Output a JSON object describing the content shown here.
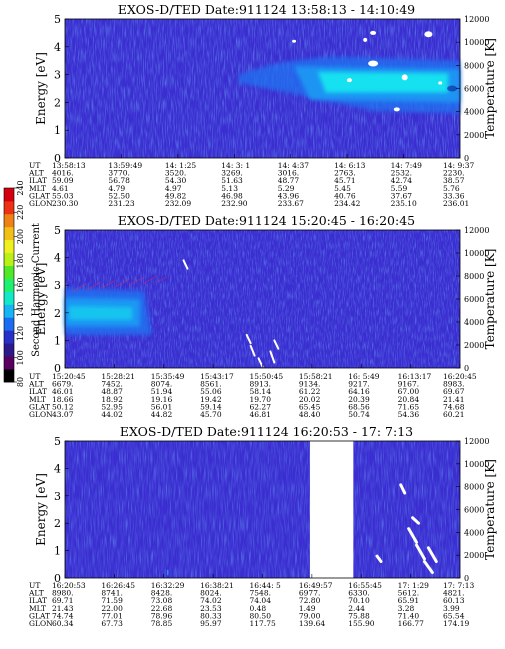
{
  "chart_data": [
    {
      "type": "heatmap",
      "title": "EXOS-D/TED   Date:911124   13:58:13 - 14:10:49",
      "ylabel": "Energy [eV]",
      "y2label": "Temperature [K]",
      "ylim": [
        0,
        5
      ],
      "y2lim": [
        0,
        12000
      ],
      "yticks": [
        "0",
        "1",
        "2",
        "3",
        "4",
        "5"
      ],
      "y2ticks": [
        "0",
        "2000",
        "4000",
        "6000",
        "8000",
        "10000",
        "12000"
      ],
      "row_labels": [
        "UT",
        "ALT",
        "ILAT",
        "MLT",
        "GLAT",
        "GLON"
      ],
      "columns": [
        [
          "13:58:13",
          "4016.",
          "59.09",
          "4.61",
          "55.03",
          "230.30"
        ],
        [
          "13:59:49",
          "3770.",
          "56.78",
          "4.79",
          "52.50",
          "231.23"
        ],
        [
          "14: 1:25",
          "3520.",
          "54.30",
          "4.97",
          "49.82",
          "232.09"
        ],
        [
          "14: 3: 1",
          "3269.",
          "51.63",
          "5.13",
          "46.98",
          "232.90"
        ],
        [
          "14: 4:37",
          "3016.",
          "48.77",
          "5.29",
          "43.96",
          "233.67"
        ],
        [
          "14: 6:13",
          "2763.",
          "45.71",
          "5.45",
          "40.76",
          "234.42"
        ],
        [
          "14: 7:49",
          "2532.",
          "42.74",
          "5.59",
          "37.67",
          "235.10"
        ],
        [
          "14: 9:37",
          "2230.",
          "38.57",
          "5.76",
          "33.36",
          "236.01"
        ]
      ]
    },
    {
      "type": "heatmap",
      "title": "EXOS-D/TED   Date:911124   15:20:45 - 16:20:45",
      "ylabel": "Energy [eV]",
      "y2label": "Temperature [K]",
      "ylim": [
        0,
        5
      ],
      "y2lim": [
        0,
        12000
      ],
      "yticks": [
        "0",
        "1",
        "2",
        "3",
        "4",
        "5"
      ],
      "y2ticks": [
        "0",
        "2000",
        "4000",
        "6000",
        "8000",
        "10000",
        "12000"
      ],
      "row_labels": [
        "UT",
        "ALT",
        "ILAT",
        "MLT",
        "GLAT",
        "GLON"
      ],
      "columns": [
        [
          "15:20:45",
          "6679.",
          "46.01",
          "18.66",
          "50.12",
          "43.07"
        ],
        [
          "15:28:21",
          "7452.",
          "48.87",
          "18.92",
          "52.95",
          "44.02"
        ],
        [
          "15:35:49",
          "8074.",
          "51.94",
          "19.16",
          "56.01",
          "44.82"
        ],
        [
          "15:43:17",
          "8561.",
          "55.06",
          "19.42",
          "59.14",
          "45.70"
        ],
        [
          "15:50:45",
          "8913.",
          "58.14",
          "19.70",
          "62.27",
          "46.81"
        ],
        [
          "15:58:21",
          "9134.",
          "61.22",
          "20.02",
          "65.45",
          "48.40"
        ],
        [
          "16: 5:49",
          "9217.",
          "64.16",
          "20.39",
          "68.56",
          "50.74"
        ],
        [
          "16:13:17",
          "9167.",
          "67.00",
          "20.84",
          "71.65",
          "54.36"
        ],
        [
          "16:20:45",
          "8983.",
          "69.67",
          "21.41",
          "74.68",
          "60.21"
        ]
      ]
    },
    {
      "type": "heatmap",
      "title": "EXOS-D/TED   Date:911124   16:20:53 - 17: 7:13",
      "ylabel": "Energy [eV]",
      "y2label": "Temperature [K]",
      "ylim": [
        0,
        5
      ],
      "y2lim": [
        0,
        12000
      ],
      "yticks": [
        "0",
        "1",
        "2",
        "3",
        "4",
        "5"
      ],
      "y2ticks": [
        "0",
        "2000",
        "4000",
        "6000",
        "8000",
        "10000",
        "12000"
      ],
      "row_labels": [
        "UT",
        "ALT",
        "ILAT",
        "MLT",
        "GLAT",
        "GLON"
      ],
      "columns": [
        [
          "16:20:53",
          "8980.",
          "69.71",
          "21.43",
          "74.74",
          "60.34"
        ],
        [
          "16:26:45",
          "8741.",
          "71.59",
          "22.00",
          "77.01",
          "67.73"
        ],
        [
          "16:32:29",
          "8428.",
          "73.08",
          "22.68",
          "78.96",
          "78.85"
        ],
        [
          "16:38:21",
          "8024.",
          "74.02",
          "23.53",
          "80.33",
          "95.97"
        ],
        [
          "16:44: 5",
          "7548.",
          "74.04",
          "0.48",
          "80.50",
          "117.75"
        ],
        [
          "16:49:57",
          "6977.",
          "72.80",
          "1.49",
          "79.00",
          "139.64"
        ],
        [
          "16:55:45",
          "6330.",
          "70.10",
          "2.44",
          "75.88",
          "155.90"
        ],
        [
          "17: 1:29",
          "5612.",
          "65.91",
          "3.28",
          "71.40",
          "166.77"
        ],
        [
          "17: 7:13",
          "4821.",
          "60.13",
          "3.99",
          "65.54",
          "174.19"
        ]
      ]
    }
  ],
  "colorbar": {
    "label": "Second Harmonic Current",
    "ticks": [
      "80",
      "100",
      "120",
      "140",
      "160",
      "180",
      "200",
      "220",
      "240"
    ],
    "colors": [
      "#000000",
      "#5a0060",
      "#2c1a8a",
      "#2830c8",
      "#1c6cf2",
      "#18b4f4",
      "#14e8c8",
      "#20f070",
      "#50e828",
      "#b8f018",
      "#f0f020",
      "#f0c018",
      "#f08018",
      "#ee3014",
      "#d40010"
    ]
  },
  "colors": {
    "background": "#3b2ed1",
    "speckle": "#2a6ef0",
    "band_cyan": "#18e6f0",
    "band_mid": "#1a9af4",
    "band_edge": "#2470f0",
    "white": "#ffffff"
  }
}
